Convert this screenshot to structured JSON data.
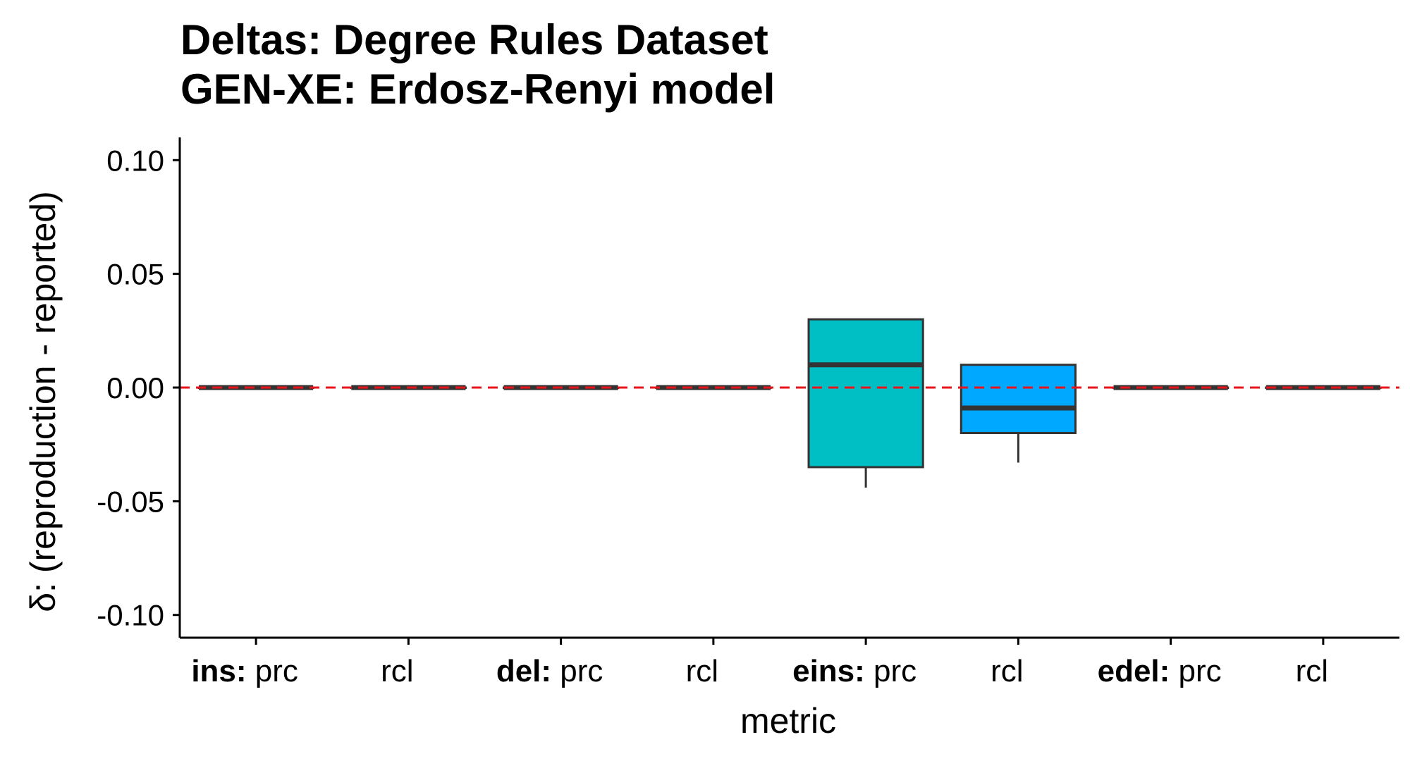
{
  "chart_data": {
    "type": "box",
    "title_lines": [
      "Deltas: Degree Rules Dataset",
      "GEN-XE: Erdosz-Renyi model"
    ],
    "xlabel": "metric",
    "ylabel": "δ: (reproduction - reported)",
    "ylim": [
      -0.11,
      0.11
    ],
    "yticks": [
      "0.10",
      "0.05",
      "0.00",
      "-0.05",
      "-0.10"
    ],
    "ytick_values": [
      0.1,
      0.05,
      0.0,
      -0.05,
      -0.1
    ],
    "reference_line": {
      "y": 0.0,
      "color": "#e8141c",
      "style": "dashed"
    },
    "categories": [
      {
        "bold": "ins:",
        "label": "prc",
        "min": 0.0,
        "q1": 0.0,
        "median": 0.0,
        "q3": 0.0,
        "max": 0.0,
        "fill": "#f0f0f0"
      },
      {
        "bold": "",
        "label": "rcl",
        "min": 0.0,
        "q1": 0.0,
        "median": 0.0,
        "q3": 0.0,
        "max": 0.0,
        "fill": "#f0f0f0"
      },
      {
        "bold": "del:",
        "label": "prc",
        "min": 0.0,
        "q1": 0.0,
        "median": 0.0,
        "q3": 0.0,
        "max": 0.0,
        "fill": "#f0f0f0"
      },
      {
        "bold": "",
        "label": "rcl",
        "min": 0.0,
        "q1": 0.0,
        "median": 0.0,
        "q3": 0.0,
        "max": 0.0,
        "fill": "#f0f0f0"
      },
      {
        "bold": "eins:",
        "label": "prc",
        "min": -0.044,
        "q1": -0.035,
        "median": 0.01,
        "q3": 0.03,
        "max": 0.03,
        "fill": "#00bfc4"
      },
      {
        "bold": "",
        "label": "rcl",
        "min": -0.033,
        "q1": -0.02,
        "median": -0.009,
        "q3": 0.01,
        "max": 0.01,
        "fill": "#00a9ff"
      },
      {
        "bold": "edel:",
        "label": "prc",
        "min": 0.0,
        "q1": 0.0,
        "median": 0.0,
        "q3": 0.0,
        "max": 0.0,
        "fill": "#f0f0f0"
      },
      {
        "bold": "",
        "label": "rcl",
        "min": 0.0,
        "q1": 0.0,
        "median": 0.0,
        "q3": 0.0,
        "max": 0.0,
        "fill": "#f0f0f0"
      }
    ]
  }
}
